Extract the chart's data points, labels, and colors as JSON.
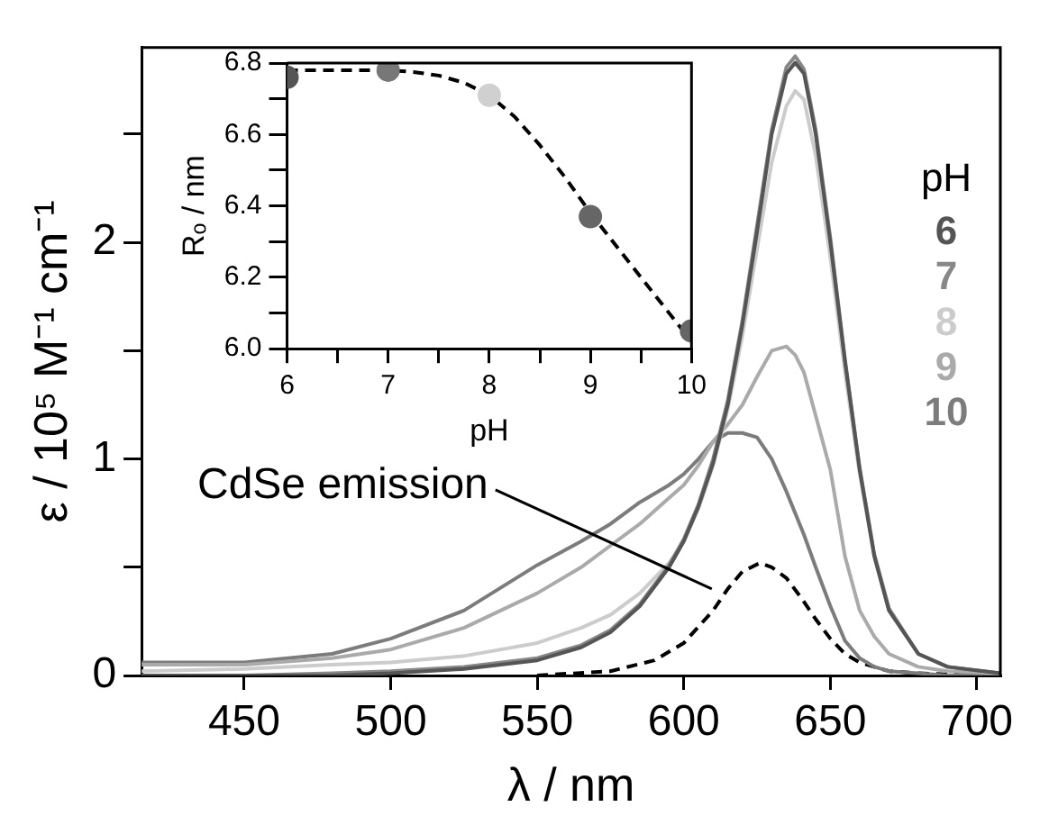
{
  "chart_data": [
    {
      "type": "line",
      "xlabel": "λ / nm",
      "ylabel": "ε / 10⁵ M⁻¹ cm⁻¹",
      "legend_title": "pH",
      "legend": "right",
      "grid": false,
      "marker": "none",
      "line_style": "solid",
      "xlim": [
        415,
        708
      ],
      "xticks": [
        450,
        500,
        550,
        600,
        650,
        700
      ],
      "ylim": [
        0,
        2.9
      ],
      "yticks": [
        0,
        {
          "value": 0.5,
          "label": null
        },
        1,
        {
          "value": 1.5,
          "label": null
        },
        2,
        {
          "value": 2.5,
          "label": null
        }
      ],
      "annotations": [
        {
          "text": "CdSe emission",
          "x": 612,
          "y": 0.4
        }
      ],
      "series": [
        {
          "name": "6",
          "color": "#555555",
          "x": [
            415,
            450,
            480,
            500,
            525,
            550,
            565,
            575,
            585,
            595,
            600,
            605,
            610,
            615,
            620,
            625,
            630,
            635,
            638,
            641,
            645,
            650,
            655,
            660,
            665,
            670,
            680,
            690,
            708
          ],
          "values": [
            0.0,
            0.0,
            0.0,
            0.01,
            0.03,
            0.07,
            0.13,
            0.2,
            0.32,
            0.5,
            0.62,
            0.78,
            0.98,
            1.25,
            1.62,
            2.05,
            2.5,
            2.78,
            2.83,
            2.78,
            2.5,
            2.0,
            1.45,
            0.95,
            0.55,
            0.3,
            0.1,
            0.04,
            0.01
          ]
        },
        {
          "name": "7",
          "color": "#888888",
          "x": [
            415,
            450,
            480,
            500,
            525,
            550,
            565,
            575,
            585,
            595,
            600,
            605,
            610,
            615,
            620,
            625,
            630,
            635,
            638,
            641,
            645,
            650,
            655,
            660,
            665,
            670,
            680,
            690,
            708
          ],
          "values": [
            0.0,
            0.0,
            0.01,
            0.02,
            0.04,
            0.08,
            0.14,
            0.21,
            0.33,
            0.51,
            0.63,
            0.79,
            1.0,
            1.27,
            1.64,
            2.08,
            2.52,
            2.81,
            2.86,
            2.8,
            2.52,
            2.02,
            1.46,
            0.96,
            0.56,
            0.31,
            0.1,
            0.04,
            0.01
          ]
        },
        {
          "name": "8",
          "color": "#cccccc",
          "x": [
            415,
            450,
            480,
            500,
            525,
            550,
            565,
            575,
            585,
            595,
            600,
            605,
            610,
            615,
            620,
            625,
            630,
            635,
            638,
            641,
            645,
            650,
            655,
            660,
            665,
            670,
            680,
            690,
            708
          ],
          "values": [
            0.02,
            0.03,
            0.05,
            0.06,
            0.09,
            0.15,
            0.22,
            0.28,
            0.38,
            0.52,
            0.62,
            0.77,
            0.97,
            1.23,
            1.57,
            1.97,
            2.37,
            2.63,
            2.7,
            2.66,
            2.4,
            1.93,
            1.4,
            0.93,
            0.55,
            0.3,
            0.1,
            0.04,
            0.01
          ]
        },
        {
          "name": "9",
          "color": "#aaaaaa",
          "x": [
            415,
            450,
            480,
            500,
            525,
            550,
            565,
            575,
            585,
            595,
            600,
            605,
            610,
            615,
            620,
            625,
            630,
            635,
            638,
            641,
            645,
            650,
            655,
            660,
            665,
            670,
            680,
            690,
            708
          ],
          "values": [
            0.05,
            0.05,
            0.08,
            0.12,
            0.22,
            0.38,
            0.5,
            0.6,
            0.7,
            0.82,
            0.88,
            0.97,
            1.08,
            1.16,
            1.25,
            1.38,
            1.5,
            1.52,
            1.48,
            1.4,
            1.2,
            0.95,
            0.55,
            0.3,
            0.18,
            0.1,
            0.04,
            0.02,
            0.01
          ]
        },
        {
          "name": "10",
          "color": "#7c7c7c",
          "x": [
            415,
            450,
            480,
            500,
            525,
            550,
            565,
            575,
            585,
            595,
            600,
            605,
            610,
            615,
            620,
            625,
            630,
            635,
            638,
            641,
            645,
            650,
            655,
            660,
            665,
            670,
            680,
            690,
            708
          ],
          "values": [
            0.06,
            0.06,
            0.1,
            0.17,
            0.3,
            0.51,
            0.62,
            0.7,
            0.8,
            0.88,
            0.93,
            1.0,
            1.08,
            1.12,
            1.12,
            1.1,
            1.0,
            0.85,
            0.75,
            0.65,
            0.5,
            0.32,
            0.16,
            0.08,
            0.04,
            0.02,
            0.01,
            0.0,
            0.0
          ]
        },
        {
          "color": "#000000",
          "line_style": "dashed",
          "x": [
            550,
            575,
            590,
            600,
            610,
            615,
            620,
            626,
            630,
            635,
            640,
            645,
            650,
            655,
            660,
            670,
            680,
            700
          ],
          "values": [
            0,
            0.02,
            0.07,
            0.15,
            0.3,
            0.4,
            0.48,
            0.52,
            0.5,
            0.45,
            0.36,
            0.26,
            0.17,
            0.1,
            0.06,
            0.02,
            0.01,
            0
          ]
        }
      ]
    },
    {
      "type": "scatter",
      "xlabel": "pH",
      "ylabel": "Rₒ / nm",
      "grid": false,
      "marker": "circle",
      "xlim": [
        6,
        10
      ],
      "xticks": [
        6,
        {
          "value": 6.5,
          "label": null
        },
        7,
        {
          "value": 7.5,
          "label": null
        },
        8,
        {
          "value": 8.5,
          "label": null
        },
        9,
        {
          "value": 9.5,
          "label": null
        },
        10
      ],
      "ylim": [
        6.0,
        6.8
      ],
      "yticks": [
        {
          "value": 6.0,
          "label": "6.0"
        },
        {
          "value": 6.1,
          "label": null
        },
        6.2,
        {
          "value": 6.3,
          "label": null
        },
        6.4,
        {
          "value": 6.5,
          "label": null
        },
        6.6,
        {
          "value": 6.7,
          "label": null
        },
        6.8
      ],
      "series": [
        {
          "type": "scatter",
          "x": [
            6,
            7,
            8,
            9,
            10
          ],
          "values": [
            6.76,
            6.78,
            6.71,
            6.37,
            6.05
          ],
          "colors": [
            "#555555",
            "#777777",
            "#d0d0d0",
            "#666666",
            "#666666"
          ]
        },
        {
          "type": "line",
          "color": "#000000",
          "line_style": "dashed",
          "marker": "none",
          "x": [
            6,
            6.5,
            7,
            7.25,
            7.5,
            7.75,
            8,
            8.25,
            8.5,
            8.75,
            9,
            9.25,
            9.5,
            9.75,
            10
          ],
          "values": [
            6.78,
            6.78,
            6.78,
            6.775,
            6.765,
            6.745,
            6.71,
            6.65,
            6.57,
            6.48,
            6.38,
            6.29,
            6.2,
            6.11,
            6.02
          ]
        }
      ]
    }
  ]
}
